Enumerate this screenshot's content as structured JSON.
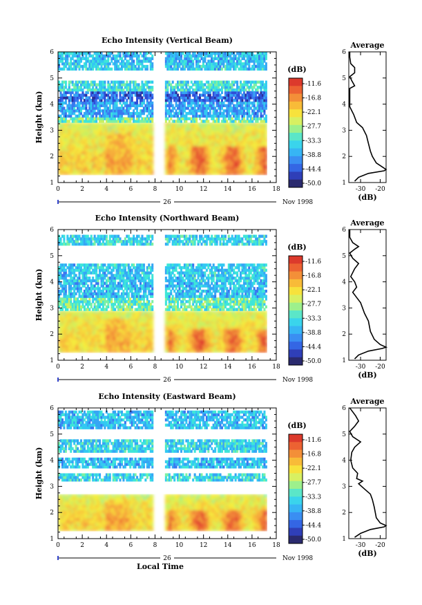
{
  "chart_data": [
    {
      "type": "heatmap",
      "title": "Echo Intensity (Vertical Beam)",
      "xlabel": "",
      "ylabel": "Height (km)",
      "xlim": [
        0,
        18
      ],
      "ylim": [
        1,
        6
      ],
      "xticks": [
        "0",
        "2",
        "4",
        "6",
        "8",
        "10",
        "12",
        "14",
        "16",
        "18"
      ],
      "yticks": [
        "1",
        "2",
        "3",
        "4",
        "5",
        "6"
      ],
      "date_label": "26",
      "date_suffix": "Nov 1998",
      "colorbar": {
        "unit": "(dB)",
        "levels": [
          "-11.6",
          "-16.8",
          "-22.1",
          "-27.7",
          "-33.3",
          "-38.8",
          "-44.4",
          "-50.0"
        ]
      },
      "data_gap": [
        7.9,
        8.8
      ],
      "coverage_end": 17.2,
      "bands": [
        {
          "from": 1.3,
          "to": 3.3,
          "value": -22
        },
        {
          "from": 3.3,
          "to": 3.5,
          "value": -30
        },
        {
          "from": 3.5,
          "to": 4.1,
          "value": -38
        },
        {
          "from": 4.1,
          "to": 4.4,
          "value": -42
        },
        {
          "from": 4.5,
          "to": 4.8,
          "value": -33
        },
        {
          "from": 5.3,
          "to": 5.5,
          "value": -35
        },
        {
          "from": 5.6,
          "to": 5.9,
          "value": -36
        }
      ],
      "average_profile": {
        "title": "Average",
        "xlabel": "(dB)",
        "xticks": [
          "-30",
          "-20"
        ],
        "xlim": [
          -36,
          -17
        ],
        "ylim": [
          1,
          6
        ],
        "yticks": [
          "1",
          "2",
          "3",
          "4",
          "5",
          "6"
        ],
        "points": [
          [
            -33,
            1.05
          ],
          [
            -31,
            1.2
          ],
          [
            -26,
            1.35
          ],
          [
            -18,
            1.45
          ],
          [
            -17,
            1.5
          ],
          [
            -19,
            1.6
          ],
          [
            -22,
            1.75
          ],
          [
            -24,
            2.0
          ],
          [
            -25,
            2.2
          ],
          [
            -26,
            2.5
          ],
          [
            -27,
            2.8
          ],
          [
            -29,
            3.1
          ],
          [
            -32,
            3.3
          ],
          [
            -33.5,
            3.6
          ],
          [
            -35.5,
            3.9
          ],
          [
            -35.5,
            4.2
          ],
          [
            -35.5,
            4.4
          ],
          [
            -35.5,
            4.6
          ],
          [
            -33,
            4.7
          ],
          [
            -34.5,
            4.9
          ],
          [
            -35.5,
            5.05
          ],
          [
            -33,
            5.2
          ],
          [
            -33,
            5.4
          ],
          [
            -35,
            5.55
          ],
          [
            -35.5,
            5.8
          ],
          [
            -35.5,
            6.0
          ]
        ]
      }
    },
    {
      "type": "heatmap",
      "title": "Echo Intensity (Northward Beam)",
      "xlabel": "",
      "ylabel": "Height (km)",
      "xlim": [
        0,
        18
      ],
      "ylim": [
        1,
        6
      ],
      "xticks": [
        "0",
        "2",
        "4",
        "6",
        "8",
        "10",
        "12",
        "14",
        "16",
        "18"
      ],
      "yticks": [
        "1",
        "2",
        "3",
        "4",
        "5",
        "6"
      ],
      "date_label": "26",
      "date_suffix": "Nov 1998",
      "colorbar": {
        "unit": "(dB)",
        "levels": [
          "-11.6",
          "-16.8",
          "-22.1",
          "-27.7",
          "-33.3",
          "-38.8",
          "-44.4",
          "-50.0"
        ]
      },
      "data_gap": [
        7.9,
        8.8
      ],
      "coverage_end": 17.2,
      "bands": [
        {
          "from": 1.3,
          "to": 2.9,
          "value": -22
        },
        {
          "from": 2.9,
          "to": 3.4,
          "value": -30
        },
        {
          "from": 3.4,
          "to": 4.0,
          "value": -36
        },
        {
          "from": 4.0,
          "to": 4.6,
          "value": -35
        },
        {
          "from": 5.4,
          "to": 5.7,
          "value": -34
        }
      ],
      "average_profile": {
        "title": "Average",
        "xlabel": "(dB)",
        "xticks": [
          "-30",
          "-20"
        ],
        "xlim": [
          -36,
          -17
        ],
        "ylim": [
          1,
          6
        ],
        "yticks": [
          "1",
          "2",
          "3",
          "4",
          "5",
          "6"
        ],
        "points": [
          [
            -33,
            1.05
          ],
          [
            -31,
            1.2
          ],
          [
            -26,
            1.35
          ],
          [
            -19,
            1.45
          ],
          [
            -17,
            1.5
          ],
          [
            -20,
            1.6
          ],
          [
            -23,
            1.8
          ],
          [
            -25,
            2.1
          ],
          [
            -26,
            2.5
          ],
          [
            -28,
            2.8
          ],
          [
            -30,
            3.2
          ],
          [
            -32,
            3.4
          ],
          [
            -34,
            3.6
          ],
          [
            -32,
            3.8
          ],
          [
            -33,
            4.0
          ],
          [
            -35,
            4.2
          ],
          [
            -33,
            4.5
          ],
          [
            -31,
            4.7
          ],
          [
            -34,
            4.9
          ],
          [
            -35.5,
            5.1
          ],
          [
            -33,
            5.25
          ],
          [
            -31,
            5.35
          ],
          [
            -34,
            5.5
          ],
          [
            -35.5,
            5.7
          ],
          [
            -35.5,
            6.0
          ]
        ]
      }
    },
    {
      "type": "heatmap",
      "title": "Echo Intensity (Eastward Beam)",
      "xlabel": "Local Time",
      "ylabel": "Height (km)",
      "xlim": [
        0,
        18
      ],
      "ylim": [
        1,
        6
      ],
      "xticks": [
        "0",
        "2",
        "4",
        "6",
        "8",
        "10",
        "12",
        "14",
        "16",
        "18"
      ],
      "yticks": [
        "1",
        "2",
        "3",
        "4",
        "5",
        "6"
      ],
      "date_label": "26",
      "date_suffix": "Nov 1998",
      "colorbar": {
        "unit": "(dB)",
        "levels": [
          "-11.6",
          "-16.8",
          "-22.1",
          "-27.7",
          "-33.3",
          "-38.8",
          "-44.4",
          "-50.0"
        ]
      },
      "data_gap": [
        7.9,
        8.8
      ],
      "coverage_end": 17.2,
      "bands": [
        {
          "from": 1.3,
          "to": 2.7,
          "value": -22
        },
        {
          "from": 3.2,
          "to": 3.5,
          "value": -34
        },
        {
          "from": 3.7,
          "to": 4.1,
          "value": -36
        },
        {
          "from": 4.3,
          "to": 4.7,
          "value": -34
        },
        {
          "from": 5.2,
          "to": 5.8,
          "value": -36
        }
      ],
      "average_profile": {
        "title": "Average",
        "xlabel": "(dB)",
        "xticks": [
          "-30",
          "-20"
        ],
        "xlim": [
          -36,
          -17
        ],
        "ylim": [
          1,
          6
        ],
        "yticks": [
          "1",
          "2",
          "3",
          "4",
          "5",
          "6"
        ],
        "points": [
          [
            -33,
            1.05
          ],
          [
            -30,
            1.2
          ],
          [
            -25,
            1.35
          ],
          [
            -18,
            1.45
          ],
          [
            -17,
            1.5
          ],
          [
            -20,
            1.6
          ],
          [
            -22,
            1.8
          ],
          [
            -23,
            2.2
          ],
          [
            -24,
            2.5
          ],
          [
            -25,
            2.7
          ],
          [
            -28,
            2.9
          ],
          [
            -31,
            3.1
          ],
          [
            -29,
            3.2
          ],
          [
            -32,
            3.3
          ],
          [
            -31.5,
            3.5
          ],
          [
            -34,
            3.7
          ],
          [
            -35,
            4.0
          ],
          [
            -34.5,
            4.3
          ],
          [
            -33,
            4.5
          ],
          [
            -30,
            4.7
          ],
          [
            -34,
            4.9
          ],
          [
            -35.5,
            5.1
          ],
          [
            -33,
            5.3
          ],
          [
            -31,
            5.5
          ],
          [
            -32.5,
            5.7
          ],
          [
            -34.5,
            5.9
          ],
          [
            -35.5,
            6.0
          ]
        ]
      }
    }
  ]
}
